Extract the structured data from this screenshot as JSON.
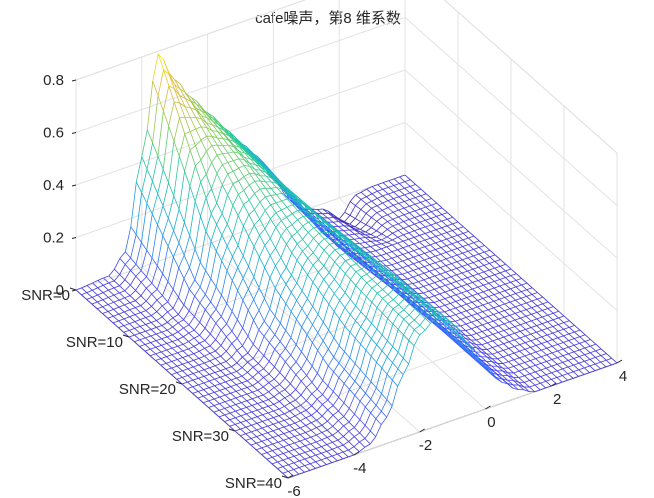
{
  "chart_data": {
    "type": "surface-mesh",
    "title": "cafe噪声，第8 维系数",
    "xlabel": "",
    "ylabel": "",
    "zlabel": "",
    "x_range": [
      -6,
      4
    ],
    "x_ticks": [
      -6,
      -4,
      -2,
      0,
      2,
      4
    ],
    "snr_ticks": [
      "SNR=0",
      "SNR=10",
      "SNR=20",
      "SNR=30",
      "SNR=40"
    ],
    "snr_range": [
      0,
      40
    ],
    "z_range": [
      0,
      0.8
    ],
    "z_ticks": [
      0,
      0.2,
      0.4,
      0.6,
      0.8
    ],
    "grid": true,
    "colormap": "parula",
    "colormap_colors": [
      "#3e26a8",
      "#4743f8",
      "#2e87f7",
      "#19b2d3",
      "#27c99e",
      "#86cd56",
      "#e0b93b",
      "#f9e91b"
    ],
    "series": [
      {
        "snr": 0,
        "x": [
          -6,
          -5,
          -4.5,
          -4,
          -3.5,
          -3,
          -2.5,
          -2,
          -1.5,
          -1,
          -0.5,
          0,
          0.5,
          1,
          1.5,
          2,
          2.5,
          3,
          4
        ],
        "density": [
          0,
          0.01,
          0.08,
          0.42,
          0.79,
          0.67,
          0.58,
          0.5,
          0.42,
          0.34,
          0.27,
          0.16,
          0.06,
          0,
          -0.02,
          -0.08,
          -0.01,
          0,
          0
        ]
      },
      {
        "snr": 10,
        "x": [
          -6,
          -5,
          -4.5,
          -4,
          -3.5,
          -3,
          -2.5,
          -2,
          -1.5,
          -1,
          -0.5,
          0,
          0.5,
          1,
          1.5,
          2,
          2.5,
          3,
          4
        ],
        "density": [
          0,
          0,
          0.02,
          0.13,
          0.36,
          0.49,
          0.5,
          0.46,
          0.4,
          0.32,
          0.22,
          0.12,
          0.05,
          0.01,
          0,
          0,
          0,
          0,
          0
        ]
      },
      {
        "snr": 20,
        "x": [
          -6,
          -5,
          -4.5,
          -4,
          -3.5,
          -3,
          -2.5,
          -2,
          -1.5,
          -1,
          -0.5,
          0,
          0.5,
          1,
          1.5,
          2,
          2.5,
          3,
          4
        ],
        "density": [
          0,
          0,
          0,
          0.03,
          0.13,
          0.28,
          0.38,
          0.42,
          0.4,
          0.34,
          0.25,
          0.15,
          0.07,
          0.02,
          0,
          0,
          0,
          0,
          0
        ]
      },
      {
        "snr": 30,
        "x": [
          -6,
          -5,
          -4.5,
          -4,
          -3.5,
          -3,
          -2.5,
          -2,
          -1.5,
          -1,
          -0.5,
          0,
          0.5,
          1,
          1.5,
          2,
          2.5,
          3,
          4
        ],
        "density": [
          0,
          0,
          0,
          0.01,
          0.05,
          0.15,
          0.29,
          0.39,
          0.41,
          0.36,
          0.27,
          0.16,
          0.08,
          0.03,
          0,
          0,
          0,
          0,
          0
        ]
      },
      {
        "snr": 40,
        "x": [
          -6,
          -5,
          -4.5,
          -4,
          -3.5,
          -3,
          -2.5,
          -2,
          -1.5,
          -1,
          -0.5,
          0,
          0.5,
          1,
          1.5,
          2,
          2.5,
          3,
          4
        ],
        "density": [
          0,
          0,
          0,
          0,
          0.02,
          0.1,
          0.24,
          0.37,
          0.41,
          0.37,
          0.27,
          0.16,
          0.08,
          0.03,
          0,
          0,
          0,
          0,
          0
        ]
      }
    ]
  }
}
